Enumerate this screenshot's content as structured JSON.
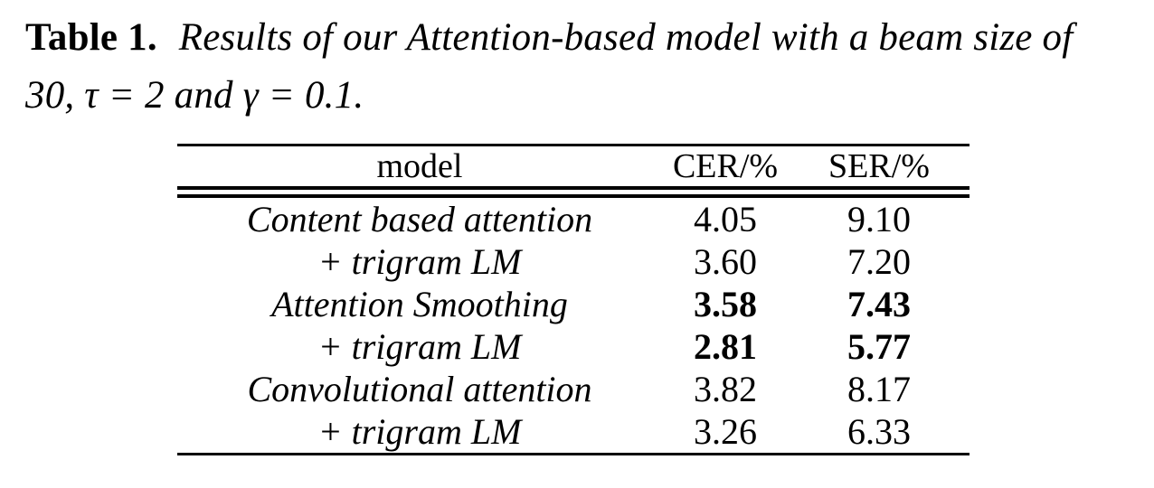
{
  "page": {
    "background": "#ffffff",
    "text_color": "#000000",
    "rule_color": "#000000"
  },
  "caption": {
    "label": "Table 1.",
    "text": "Results of our Attention-based model with a beam size of 30, τ = 2 and γ = 0.1."
  },
  "table": {
    "columns": [
      "model",
      "CER/%",
      "SER/%"
    ],
    "rows": [
      {
        "model": "Content based attention",
        "cer": "4.05",
        "ser": "9.10",
        "bold": false
      },
      {
        "model": "+ trigram LM",
        "cer": "3.60",
        "ser": "7.20",
        "bold": false
      },
      {
        "model": "Attention Smoothing",
        "cer": "3.58",
        "ser": "7.43",
        "bold": true
      },
      {
        "model": "+ trigram LM",
        "cer": "2.81",
        "ser": "5.77",
        "bold": true
      },
      {
        "model": "Convolutional attention",
        "cer": "3.82",
        "ser": "8.17",
        "bold": false
      },
      {
        "model": "+ trigram LM",
        "cer": "3.26",
        "ser": "6.33",
        "bold": false
      }
    ]
  }
}
